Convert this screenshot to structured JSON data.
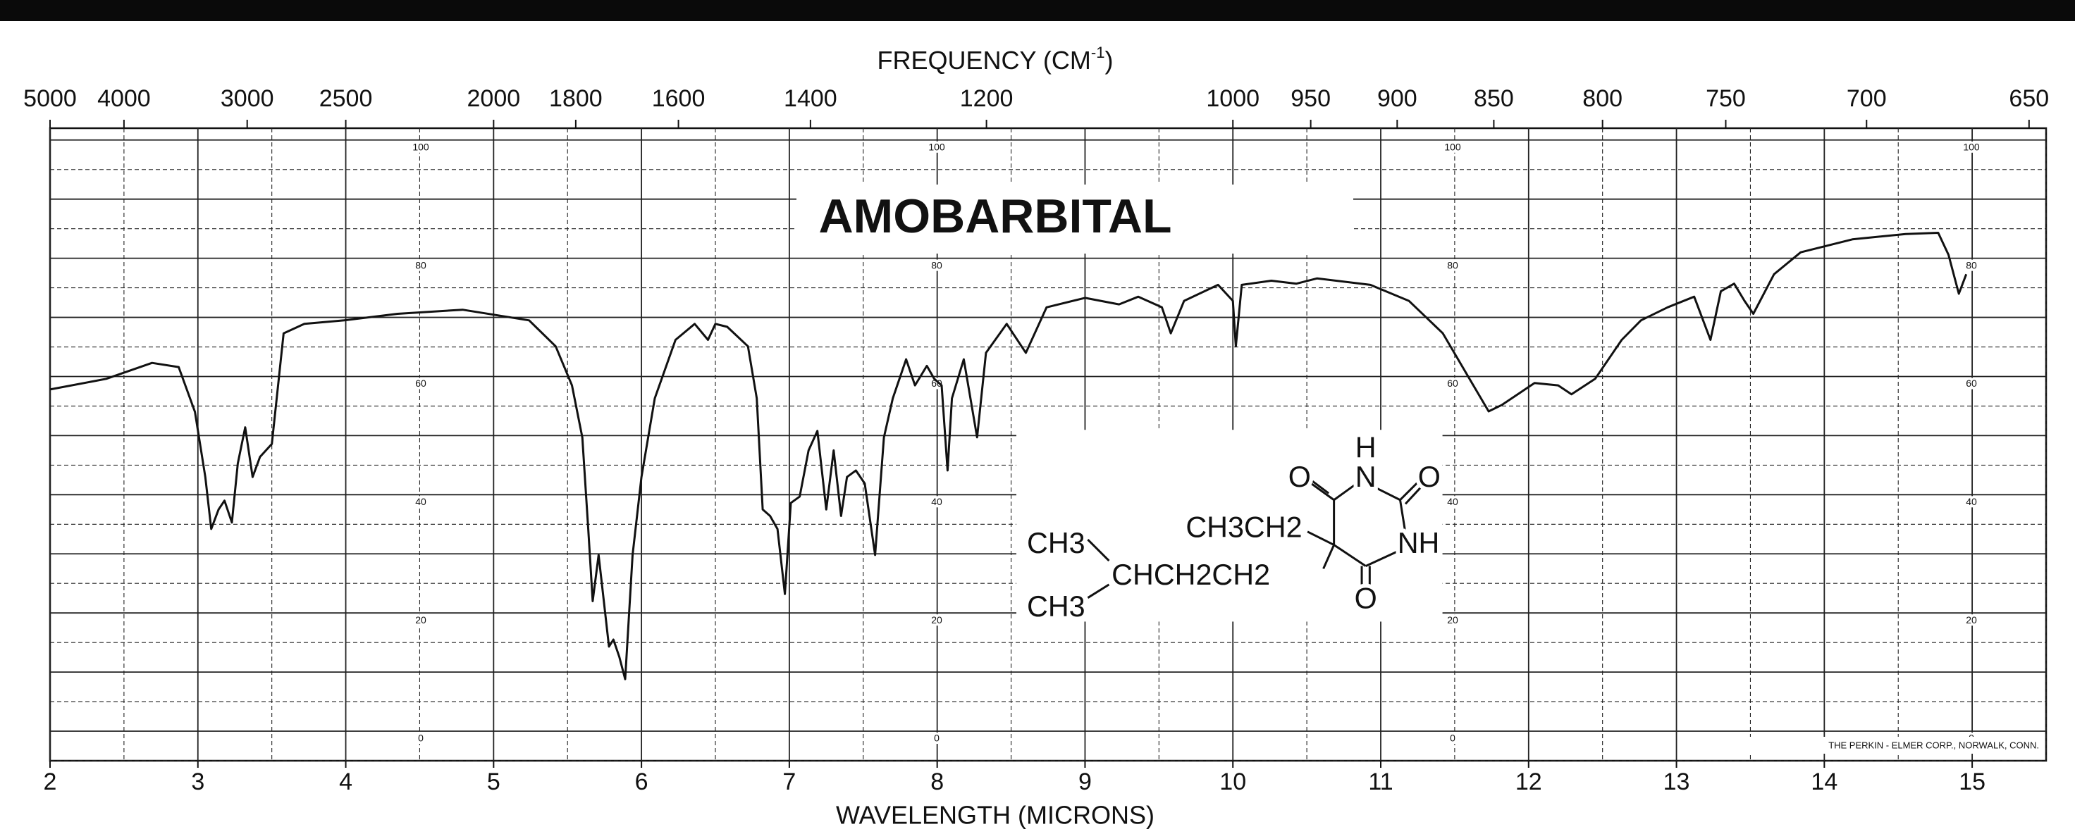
{
  "chart_data": {
    "type": "line",
    "title": "AMOBARBITAL",
    "x_label": "WAVELENGTH (MICRONS)",
    "x2_label": [
      "FREQUENCY (CM",
      "-1",
      ")"
    ],
    "credit": "THE PERKIN - ELMER CORP., NORWALK, CONN.",
    "color": "#111111",
    "xlim": [
      2,
      15.5
    ],
    "xticks": [
      2,
      3,
      4,
      5,
      6,
      7,
      8,
      9,
      10,
      11,
      12,
      13,
      14,
      15
    ],
    "x2ticks": [
      5000,
      4000,
      3000,
      2500,
      2000,
      1800,
      1600,
      1400,
      1200,
      1000,
      950,
      900,
      850,
      800,
      750,
      700,
      650
    ],
    "x2scale": "reciprocal",
    "ylim": [
      -5,
      102
    ],
    "yticks": [
      0,
      20,
      40,
      60,
      80,
      100
    ],
    "grid": true,
    "xgrid": [
      2,
      2.5,
      3,
      3.5,
      4,
      4.5,
      5,
      5.5,
      6,
      6.5,
      7,
      7.5,
      8,
      8.5,
      9,
      9.5,
      10,
      10.5,
      11,
      11.5,
      12,
      12.5,
      13,
      13.5,
      14,
      14.5,
      15,
      15.5
    ],
    "ygrid": [
      -5,
      0,
      5,
      10,
      15,
      20,
      25,
      30,
      35,
      40,
      45,
      50,
      55,
      60,
      65,
      70,
      75,
      80,
      85,
      90,
      95,
      100
    ],
    "x": [
      2.0,
      2.38,
      2.69,
      2.87,
      2.98,
      3.05,
      3.09,
      3.14,
      3.18,
      3.23,
      3.27,
      3.32,
      3.37,
      3.42,
      3.5,
      3.58,
      3.72,
      3.99,
      4.35,
      4.79,
      5.24,
      5.42,
      5.53,
      5.6,
      5.64,
      5.67,
      5.71,
      5.73,
      5.78,
      5.81,
      5.85,
      5.89,
      5.94,
      6.0,
      6.09,
      6.23,
      6.36,
      6.45,
      6.5,
      6.58,
      6.72,
      6.78,
      6.82,
      6.87,
      6.92,
      6.97,
      7.01,
      7.07,
      7.13,
      7.19,
      7.25,
      7.3,
      7.35,
      7.39,
      7.45,
      7.51,
      7.58,
      7.64,
      7.7,
      7.79,
      7.85,
      7.93,
      7.98,
      8.03,
      8.07,
      8.1,
      8.18,
      8.27,
      8.33,
      8.47,
      8.6,
      8.74,
      9.0,
      9.23,
      9.36,
      9.52,
      9.58,
      9.67,
      9.9,
      10.0,
      10.02,
      10.06,
      10.26,
      10.43,
      10.57,
      10.93,
      11.19,
      11.42,
      11.6,
      11.73,
      11.82,
      12.04,
      12.2,
      12.29,
      12.45,
      12.63,
      12.76,
      12.94,
      13.12,
      13.23,
      13.3,
      13.39,
      13.46,
      13.52,
      13.66,
      13.84,
      14.19,
      14.55,
      14.77,
      14.84,
      14.91,
      14.96
    ],
    "values": [
      57.8,
      59.6,
      62.3,
      61.6,
      54.0,
      43.0,
      34.2,
      37.5,
      39.0,
      35.3,
      45.3,
      51.4,
      43.0,
      46.4,
      48.6,
      67.3,
      68.9,
      69.5,
      70.6,
      71.3,
      69.5,
      65.1,
      58.5,
      49.7,
      34.2,
      22.0,
      29.8,
      25.4,
      14.3,
      15.5,
      12.6,
      8.8,
      29.8,
      43.0,
      56.3,
      66.2,
      68.9,
      66.2,
      68.9,
      68.4,
      65.1,
      56.3,
      37.5,
      36.4,
      34.2,
      23.2,
      38.6,
      39.7,
      47.5,
      50.8,
      37.5,
      47.5,
      36.4,
      43.0,
      44.1,
      41.9,
      29.8,
      49.7,
      56.3,
      62.9,
      58.5,
      61.8,
      59.6,
      58.5,
      44.1,
      56.3,
      62.9,
      49.7,
      64.0,
      68.9,
      64.0,
      71.7,
      73.3,
      72.2,
      73.5,
      71.7,
      67.3,
      72.8,
      75.5,
      72.8,
      65.1,
      75.5,
      76.2,
      75.7,
      76.6,
      75.5,
      72.8,
      67.3,
      59.6,
      54.1,
      55.2,
      58.9,
      58.5,
      57.0,
      59.6,
      66.2,
      69.5,
      71.7,
      73.5,
      66.2,
      74.4,
      75.7,
      72.8,
      70.6,
      77.3,
      81.0,
      83.2,
      84.1,
      84.3,
      80.6,
      74.0,
      77.3
    ]
  },
  "structure": {
    "labels": [
      "H",
      "O",
      "N",
      "O",
      "CH3CH2",
      "NH",
      "CH3",
      "CHCH2CH2",
      "O",
      "CH3"
    ]
  }
}
